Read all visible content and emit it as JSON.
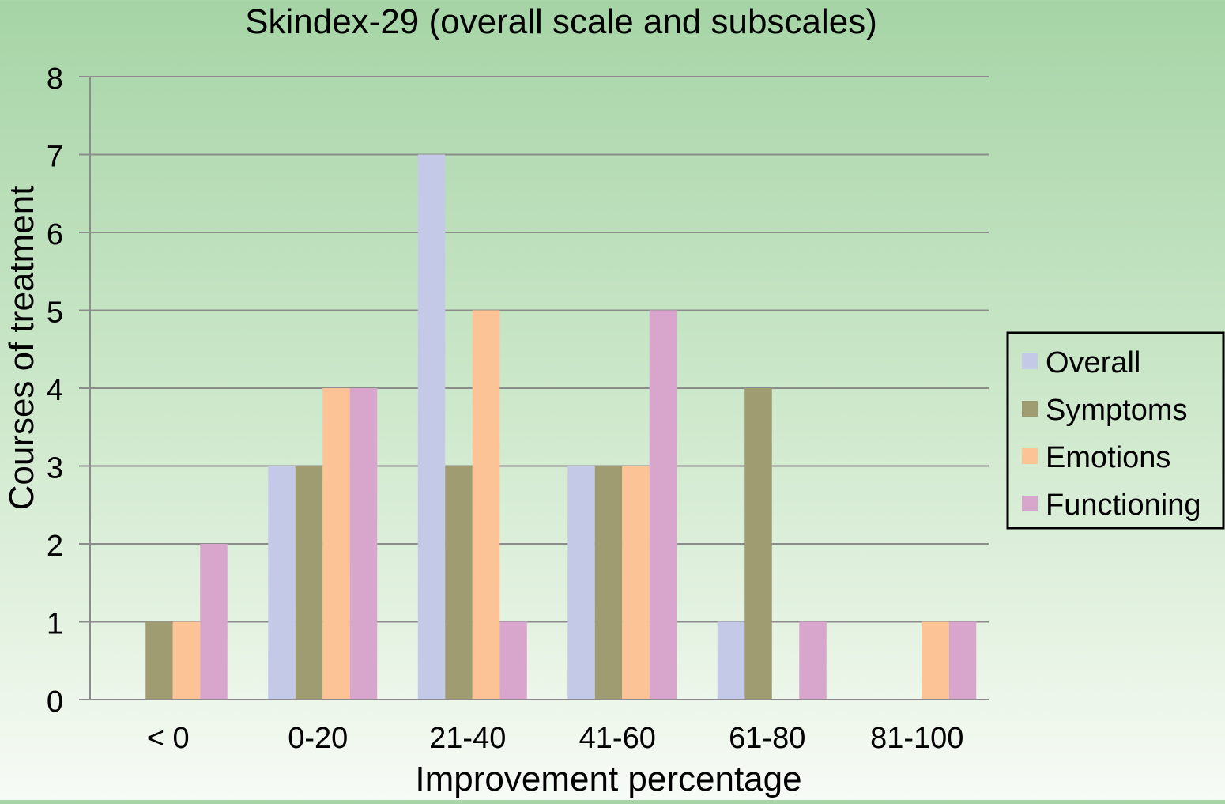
{
  "chart_data": {
    "type": "bar",
    "title": "Skindex-29 (overall scale and subscales)",
    "xlabel": "Improvement percentage",
    "ylabel": "Courses of treatment",
    "ylim": [
      0,
      8
    ],
    "yticks": [
      0,
      1,
      2,
      3,
      4,
      5,
      6,
      7,
      8
    ],
    "grid": true,
    "legend_position": "right",
    "categories": [
      "< 0",
      "0-20",
      "21-40",
      "41-60",
      "61-80",
      "81-100"
    ],
    "series": [
      {
        "name": "Overall",
        "color": "#c3c9e6",
        "values": [
          0,
          3,
          7,
          3,
          1,
          0
        ]
      },
      {
        "name": "Symptoms",
        "color": "#a09c72",
        "values": [
          1,
          3,
          3,
          3,
          4,
          0
        ]
      },
      {
        "name": "Emotions",
        "color": "#fcc396",
        "values": [
          1,
          4,
          5,
          3,
          0,
          1
        ]
      },
      {
        "name": "Functioning",
        "color": "#d8a5cd",
        "values": [
          2,
          4,
          1,
          5,
          1,
          1
        ]
      }
    ]
  }
}
